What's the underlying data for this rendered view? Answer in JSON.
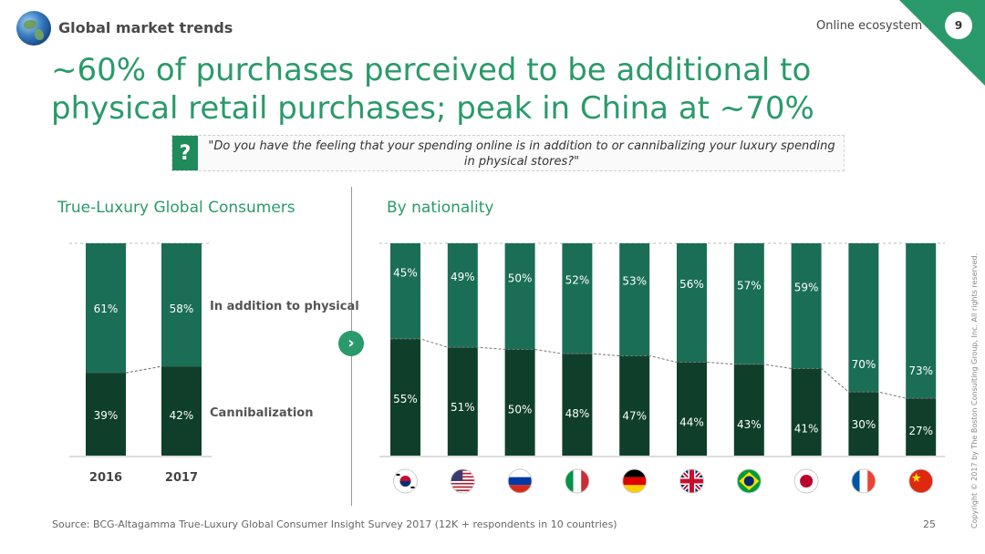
{
  "header": {
    "title": "Global market trends",
    "section": "Online ecosystem",
    "section_number": "9"
  },
  "main_title_line1": "~60% of purchases perceived to be additional to",
  "main_title_line2": "physical retail purchases; peak in China at ~70%",
  "question": {
    "mark": "?",
    "text": "\"Do you have the feeling that your spending online is in addition to or cannibalizing your luxury spending in physical stores?\""
  },
  "colors": {
    "brand": "#2a9a6a",
    "upper": "#1a6e55",
    "lower": "#0f3f2a"
  },
  "chart_data": [
    {
      "type": "bar",
      "stacked": true,
      "title": "True-Luxury Global Consumers",
      "categories": [
        "2016",
        "2017"
      ],
      "series": [
        {
          "name": "Cannibalization",
          "values": [
            39,
            42
          ]
        },
        {
          "name": "In addition to physical",
          "values": [
            61,
            58
          ]
        }
      ],
      "labels": [
        {
          "bottom": "39%",
          "top": "61%"
        },
        {
          "bottom": "42%",
          "top": "58%"
        }
      ],
      "ylim": [
        0,
        100
      ],
      "series_labels": {
        "top": "In addition to physical",
        "bottom": "Cannibalization"
      }
    },
    {
      "type": "bar",
      "stacked": true,
      "title": "By nationality",
      "categories": [
        "Korea",
        "USA",
        "Russia",
        "Italy",
        "Germany",
        "UK",
        "Brazil",
        "Japan",
        "France",
        "China"
      ],
      "series": [
        {
          "name": "Cannibalization",
          "values": [
            55,
            51,
            50,
            48,
            47,
            44,
            43,
            41,
            30,
            27
          ]
        },
        {
          "name": "In addition to physical",
          "values": [
            45,
            49,
            50,
            52,
            53,
            56,
            57,
            59,
            70,
            73
          ]
        }
      ],
      "labels": [
        {
          "bottom": "55%",
          "top": "45%"
        },
        {
          "bottom": "51%",
          "top": "49%"
        },
        {
          "bottom": "50%",
          "top": "50%"
        },
        {
          "bottom": "48%",
          "top": "52%"
        },
        {
          "bottom": "47%",
          "top": "53%"
        },
        {
          "bottom": "44%",
          "top": "56%"
        },
        {
          "bottom": "43%",
          "top": "57%"
        },
        {
          "bottom": "41%",
          "top": "59%"
        },
        {
          "bottom": "30%",
          "top": "70%"
        },
        {
          "bottom": "27%",
          "top": "73%"
        }
      ],
      "ylim": [
        0,
        100
      ]
    }
  ],
  "footer": {
    "source": "Source: BCG-Altagamma True-Luxury Global Consumer Insight Survey 2017 (12K + respondents in 10 countries)",
    "page": "25",
    "copyright": "Copyright © 2017 by The Boston Consulting Group, Inc. All rights reserved."
  }
}
